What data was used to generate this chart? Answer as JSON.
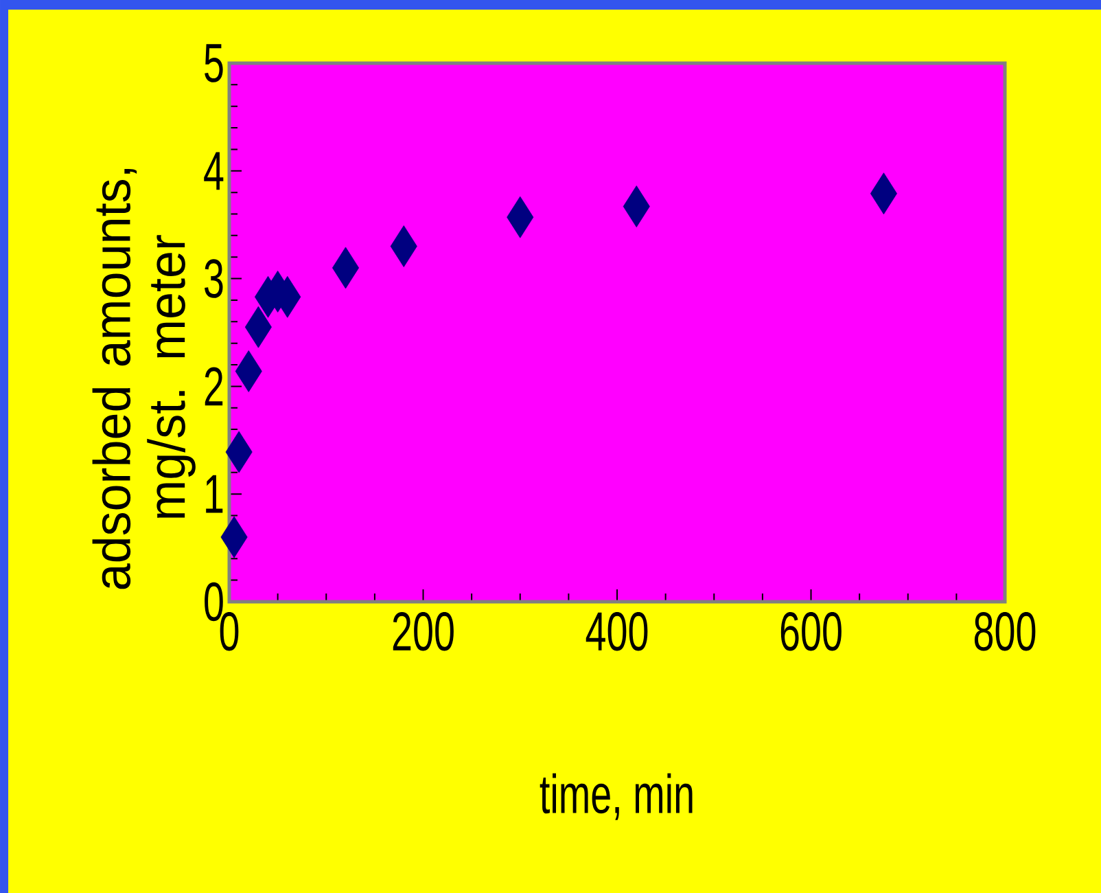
{
  "chart_data": {
    "type": "scatter",
    "xlabel": "time, min",
    "ylabel": "adsorbed amounts, mg/st. meter",
    "series": [
      {
        "color": "#000080",
        "x": [
          5,
          10,
          20,
          30,
          40,
          50,
          60,
          120,
          180,
          300,
          420,
          675
        ],
        "values": [
          0.6,
          1.39,
          2.14,
          2.55,
          2.83,
          2.88,
          2.83,
          3.1,
          3.3,
          3.57,
          3.67,
          3.79
        ]
      }
    ],
    "marker": "diamond",
    "xlim": [
      0,
      800
    ],
    "ylim": [
      0,
      5
    ],
    "xticks": [
      0,
      200,
      400,
      600,
      800
    ],
    "yticks": [
      0,
      1,
      2,
      3,
      4,
      5
    ]
  }
}
